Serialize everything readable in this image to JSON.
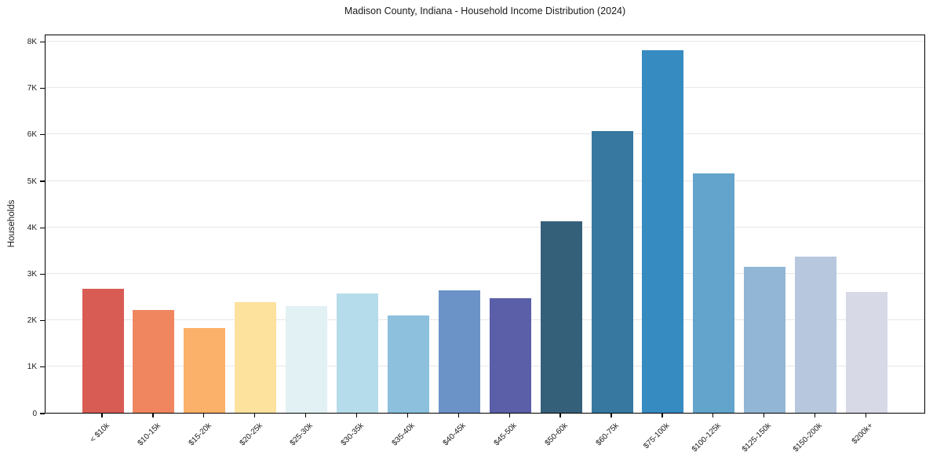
{
  "chart_data": {
    "type": "bar",
    "title": "Madison County, Indiana - Household Income Distribution (2024)",
    "ylabel": "Households",
    "xlabel": "",
    "categories": [
      "< $10k",
      "$10-15k",
      "$15-20k",
      "$20-25k",
      "$25-30k",
      "$30-35k",
      "$35-40k",
      "$40-45k",
      "$45-50k",
      "$50-60k",
      "$60-75k",
      "$75-100k",
      "$100-125k",
      "$125-150k",
      "$150-200k",
      "$200k+"
    ],
    "values": [
      2670,
      2210,
      1830,
      2390,
      2300,
      2570,
      2090,
      2640,
      2470,
      4120,
      6070,
      7800,
      5150,
      3140,
      3360,
      2600
    ],
    "bar_colors": [
      "#d85c54",
      "#f0865f",
      "#fbb169",
      "#fde29e",
      "#e2f1f4",
      "#b5dcea",
      "#8cc0dd",
      "#6b93c8",
      "#5a5fa8",
      "#35607a",
      "#36789f",
      "#368bc1",
      "#62a4cb",
      "#92b6d5",
      "#b7c8de",
      "#d8d9e6"
    ],
    "yticks": [
      {
        "value": 0,
        "label": "0"
      },
      {
        "value": 1000,
        "label": "1K"
      },
      {
        "value": 2000,
        "label": "2K"
      },
      {
        "value": 3000,
        "label": "3K"
      },
      {
        "value": 4000,
        "label": "4K"
      },
      {
        "value": 5000,
        "label": "5K"
      },
      {
        "value": 6000,
        "label": "6K"
      },
      {
        "value": 7000,
        "label": "7K"
      },
      {
        "value": 8000,
        "label": "8K"
      }
    ],
    "ylim": [
      0,
      8160
    ],
    "grid": "horizontal-only",
    "legend": "none",
    "background_color": "#ffffff",
    "gridline_color": "#e7e7e7",
    "axis_color": "#000000",
    "text_color": "#1a1a1a"
  }
}
